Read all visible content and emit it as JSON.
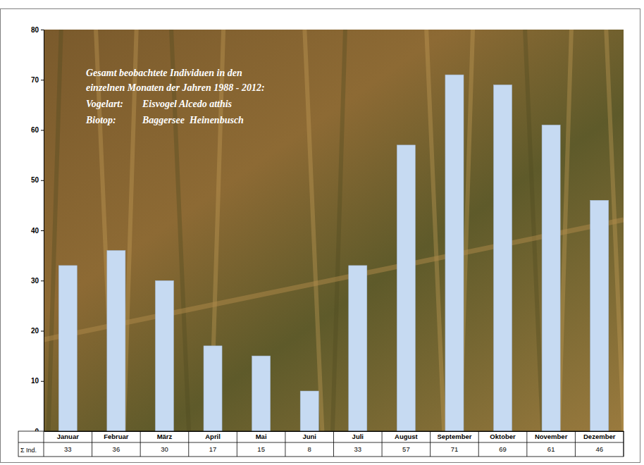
{
  "chart_data": {
    "type": "bar",
    "title": "Gesamt beobachtete Individuen in den einzelnen Monaten der Jahren 1988 - 2012:",
    "annotations": [
      {
        "label": "Vogelart:",
        "text": "Eisvogel Alcedo atthis"
      },
      {
        "label": "Biotop:",
        "text": "Baggersee  Heinenbusch"
      }
    ],
    "categories": [
      "Januar",
      "Februar",
      "März",
      "April",
      "Mai",
      "Juni",
      "Juli",
      "August",
      "September",
      "Oktober",
      "November",
      "Dezember"
    ],
    "values": [
      33,
      36,
      30,
      17,
      15,
      8,
      33,
      57,
      71,
      69,
      61,
      46
    ],
    "row_label": "Σ Ind.",
    "color": "#c6daf2",
    "ylim": [
      0,
      80
    ],
    "yticks": [
      0,
      10,
      20,
      30,
      40,
      50,
      60,
      70,
      80
    ],
    "grid": false
  }
}
